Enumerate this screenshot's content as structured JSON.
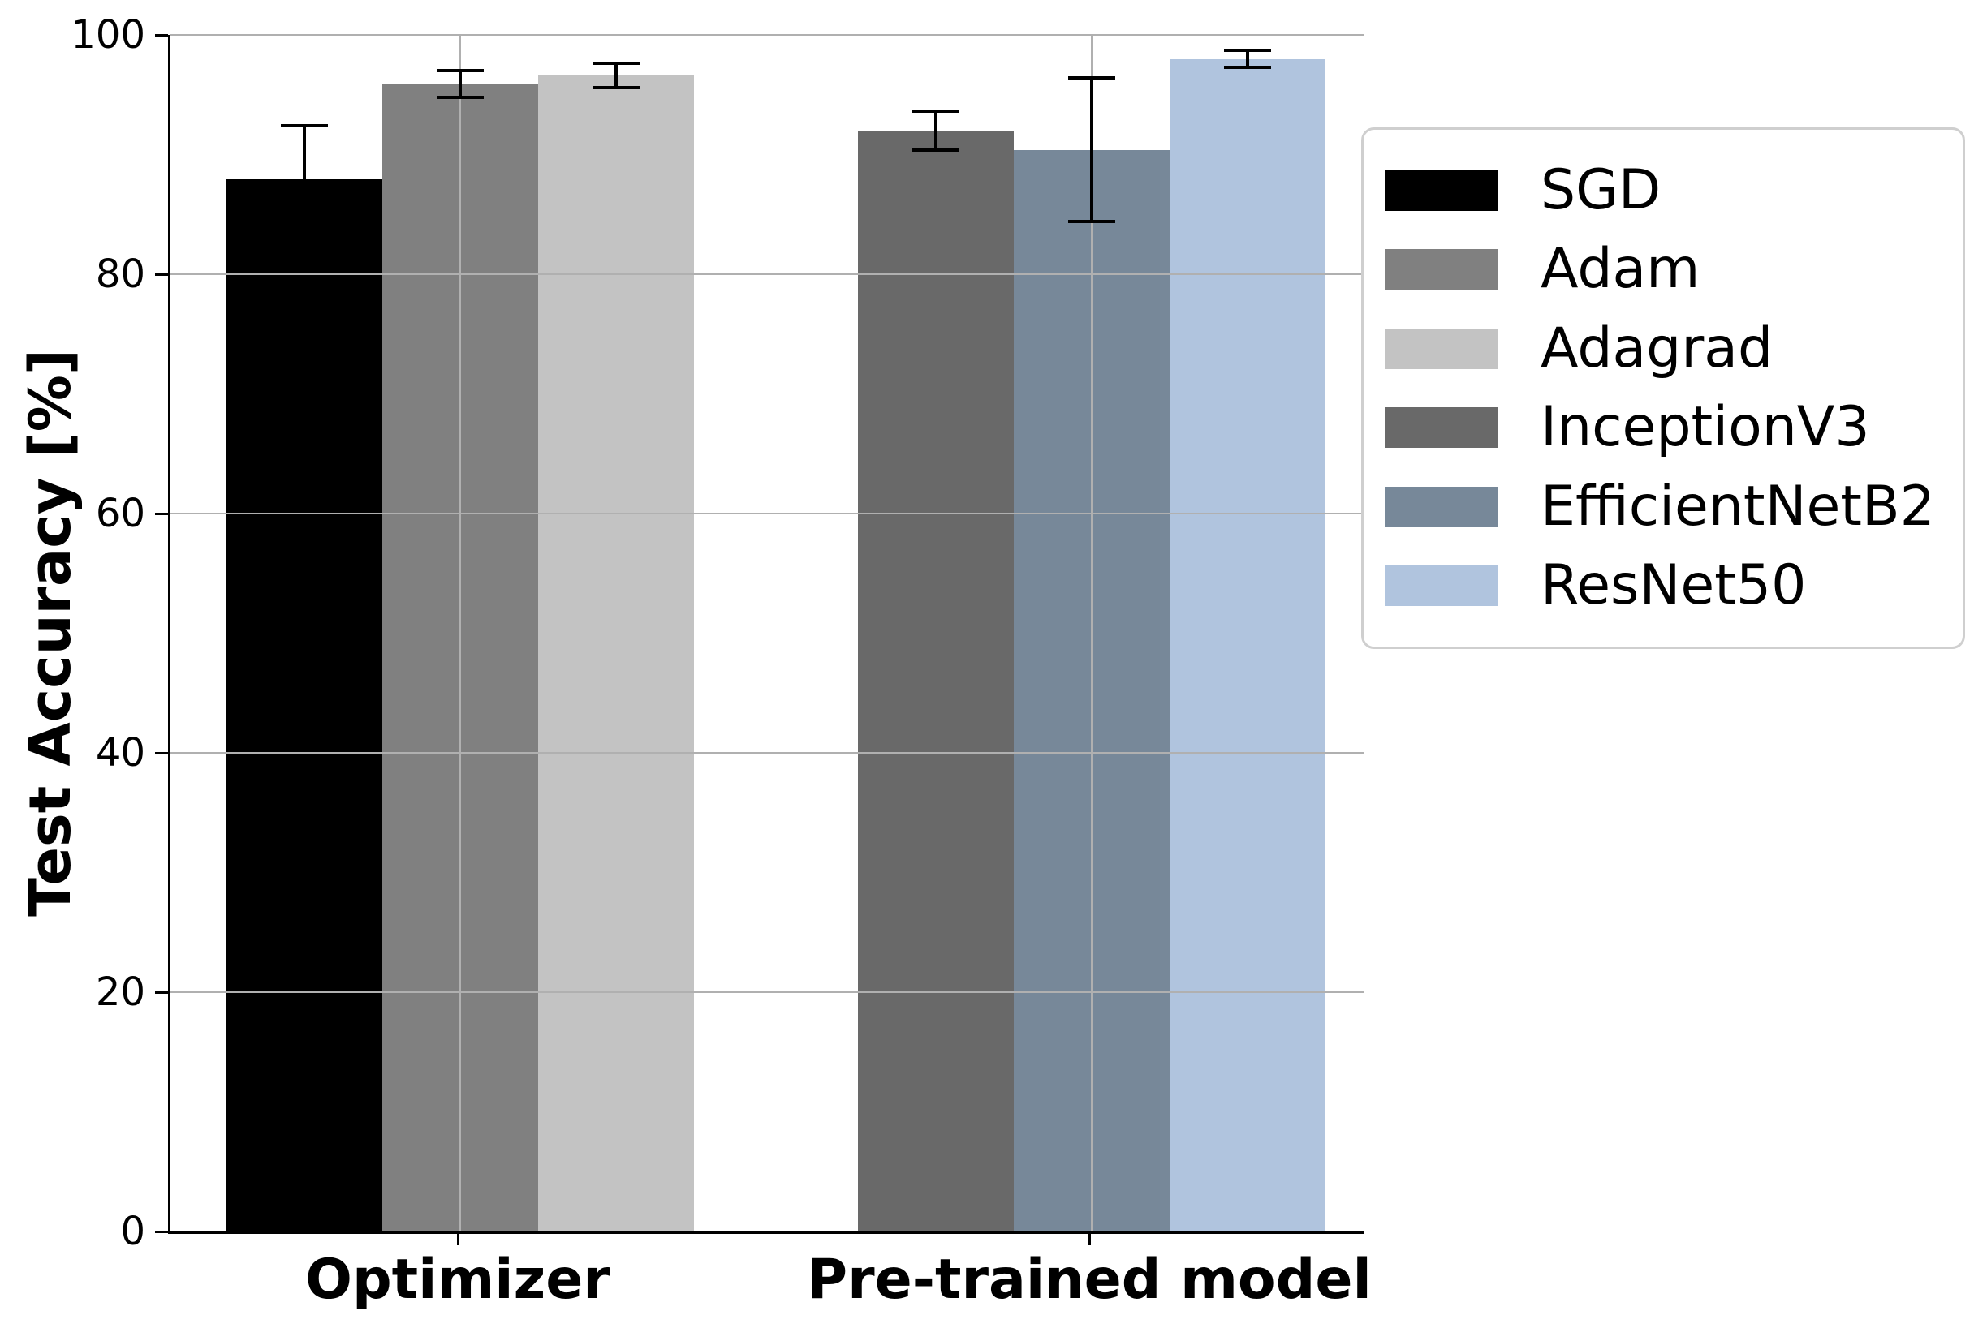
{
  "chart_data": {
    "type": "bar",
    "title": "",
    "xlabel": "",
    "ylabel": "Test Accuracy [%]",
    "ylim": [
      0,
      100
    ],
    "yticks": [
      0,
      20,
      40,
      60,
      80,
      100
    ],
    "grid": true,
    "grid_color": "#b0b0b0",
    "legend_position": "upper-right-outside",
    "categories": [
      "Optimizer",
      "Pre-trained model"
    ],
    "series": [
      {
        "name": "SGD",
        "category": "Optimizer",
        "value": 87.9,
        "error": 4.5,
        "color": "#000000"
      },
      {
        "name": "Adam",
        "category": "Optimizer",
        "value": 95.9,
        "error": 1.1,
        "color": "#808080"
      },
      {
        "name": "Adagrad",
        "category": "Optimizer",
        "value": 96.6,
        "error": 1.0,
        "color": "#c3c3c3"
      },
      {
        "name": "InceptionV3",
        "category": "Pre-trained model",
        "value": 92.0,
        "error": 1.6,
        "color": "#696969"
      },
      {
        "name": "EfficientNetB2",
        "category": "Pre-trained model",
        "value": 90.4,
        "error": 6.0,
        "color": "#778899"
      },
      {
        "name": "ResNet50",
        "category": "Pre-trained model",
        "value": 98.0,
        "error": 0.7,
        "color": "#b0c4de"
      }
    ],
    "legend_entries": [
      "SGD",
      "Adam",
      "Adagrad",
      "InceptionV3",
      "EfficientNetB2",
      "ResNet50"
    ]
  }
}
